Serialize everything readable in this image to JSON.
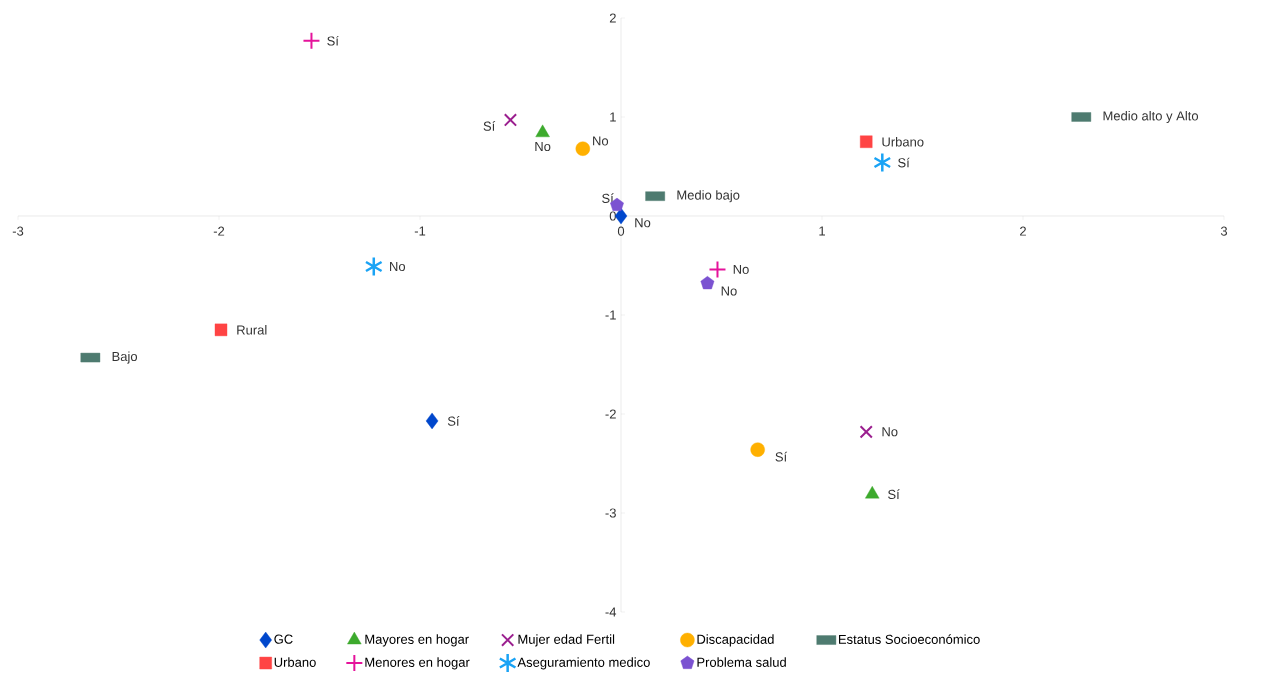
{
  "chart_data": {
    "type": "scatter",
    "xlim": [
      -3,
      3
    ],
    "ylim": [
      -4,
      2
    ],
    "xticks": [
      -3,
      -2,
      -1,
      0,
      1,
      2,
      3
    ],
    "yticks": [
      -4,
      -3,
      -2,
      -1,
      0,
      1,
      2
    ],
    "grid": false,
    "legend": "bottom",
    "series": [
      {
        "name": "GC",
        "color": "#0047cc",
        "marker": "diamond",
        "x": [
          0,
          -0.94
        ],
        "values": [
          0,
          -2.07
        ]
      },
      {
        "name": "Mayores en hogar",
        "color": "#3daa2d",
        "marker": "triangle",
        "x": [
          -0.39,
          1.25
        ],
        "values": [
          0.84,
          -2.81
        ]
      },
      {
        "name": "Mujer edad Fertil",
        "color": "#9b1f8f",
        "marker": "x",
        "x": [
          -0.55,
          1.22
        ],
        "values": [
          0.97,
          -2.18
        ]
      },
      {
        "name": "Discapacidad",
        "color": "#ffb000",
        "marker": "circle",
        "x": [
          -0.19,
          0.68
        ],
        "values": [
          0.68,
          -2.36
        ]
      },
      {
        "name": "Estatus Socioeconómico",
        "color": "#4e7b70",
        "marker": "square",
        "x": [
          2.29,
          0.17,
          -2.64
        ],
        "values": [
          1.0,
          0.2,
          -1.43
        ]
      },
      {
        "name": "Urbano",
        "color": "#ff4444",
        "marker": "square",
        "x": [
          1.22,
          -1.99
        ],
        "values": [
          0.75,
          -1.15
        ]
      },
      {
        "name": "Menores en hogar",
        "color": "#e5139b",
        "marker": "plus",
        "x": [
          -1.54,
          0.48
        ],
        "values": [
          1.77,
          -0.54
        ]
      },
      {
        "name": "Aseguramiento medico",
        "color": "#1aa3f5",
        "marker": "cross",
        "x": [
          1.3,
          -1.23
        ],
        "values": [
          0.54,
          -0.51
        ]
      },
      {
        "name": "Problema salud",
        "color": "#7b52d1",
        "x": [
          -0.02,
          0.43
        ],
        "values": [
          0.11,
          -0.68
        ]
      }
    ],
    "annotations": [
      {
        "text": "No",
        "x": 0,
        "y": 0
      },
      {
        "text": "Sí",
        "x": -0.94,
        "y": -2.07
      },
      {
        "text": "No",
        "x": -0.39,
        "y": 0.84
      },
      {
        "text": "Sí",
        "x": 1.25,
        "y": -2.81
      },
      {
        "text": "Sí",
        "x": -0.55,
        "y": 0.97
      },
      {
        "text": "No",
        "x": 1.22,
        "y": -2.18
      },
      {
        "text": "No",
        "x": -0.19,
        "y": 0.68
      },
      {
        "text": "Sí",
        "x": 0.68,
        "y": -2.36
      },
      {
        "text": "Medio alto y Alto",
        "x": 2.29,
        "y": 1.0
      },
      {
        "text": "Medio bajo",
        "x": 0.17,
        "y": 0.2
      },
      {
        "text": "Bajo",
        "x": -2.64,
        "y": -1.43
      },
      {
        "text": "Urbano",
        "x": 1.22,
        "y": 0.75
      },
      {
        "text": "Rural",
        "x": -1.99,
        "y": -1.15
      },
      {
        "text": "Sí",
        "x": -1.54,
        "y": 1.77
      },
      {
        "text": "No",
        "x": 0.48,
        "y": -0.54
      },
      {
        "text": "Sí",
        "x": 1.3,
        "y": 0.54
      },
      {
        "text": "No",
        "x": -1.23,
        "y": -0.51
      },
      {
        "text": "Sí",
        "x": -0.02,
        "y": 0.11
      },
      {
        "text": "No",
        "x": 0.43,
        "y": -0.68
      }
    ]
  }
}
